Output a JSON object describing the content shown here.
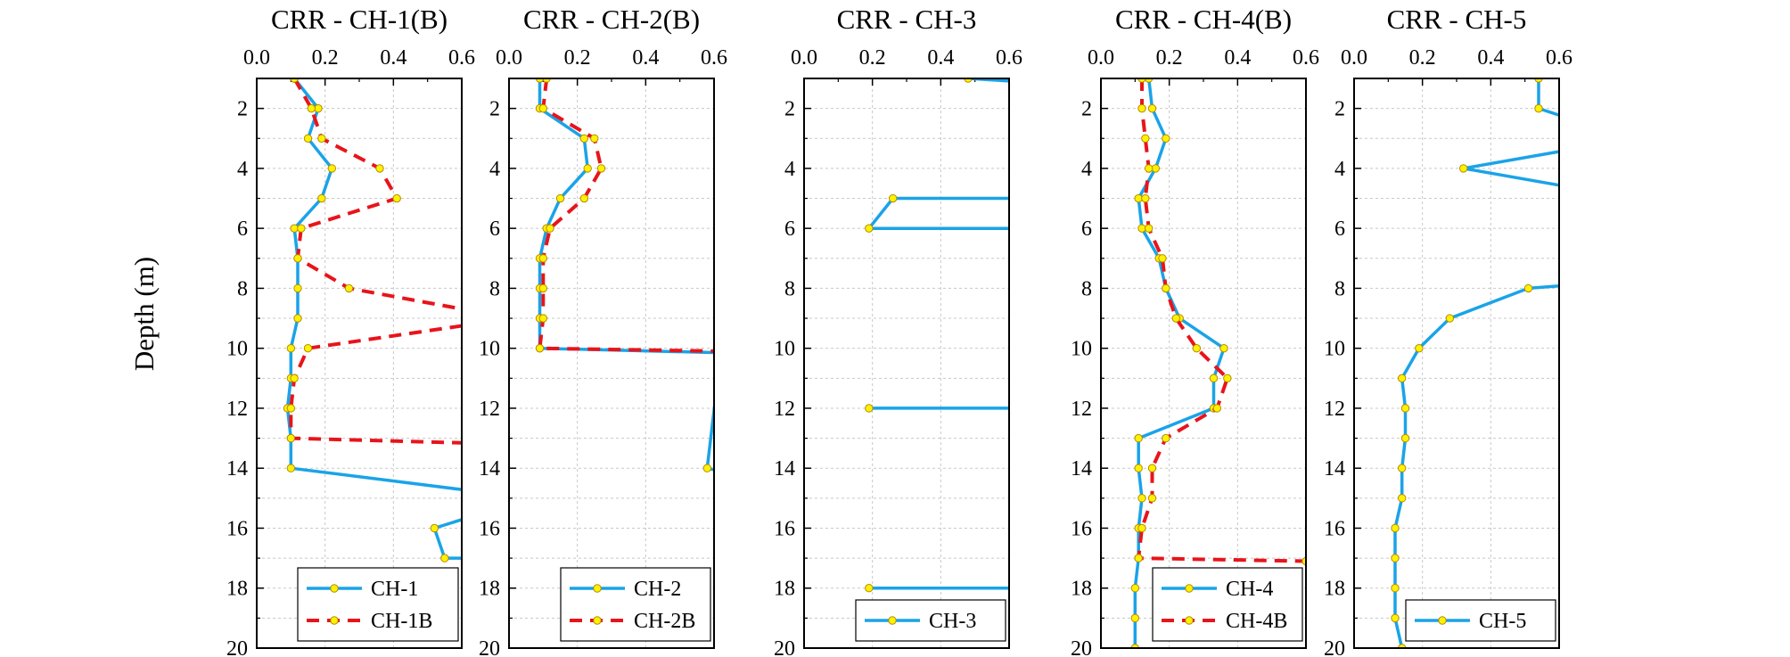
{
  "figure": {
    "ylabel": "Depth (m)",
    "colors": {
      "solid": "#1AA3E8",
      "dashed": "#E8141B",
      "marker_fill": "#FFF200",
      "marker_edge": "#B58A00"
    }
  },
  "chart_data": [
    {
      "type": "line",
      "title": "CRR - CH-1(B)",
      "xlim": [
        0,
        0.6
      ],
      "ylim": [
        1,
        20
      ],
      "y_inverted": true,
      "x_axis_position": "top",
      "xticks": [
        "0.0",
        "0.2",
        "0.4",
        "0.6"
      ],
      "yticks": [
        "2",
        "4",
        "6",
        "8",
        "10",
        "12",
        "14",
        "16",
        "18",
        "20"
      ],
      "grid": true,
      "legend_position": "bottom-right",
      "series": [
        {
          "name": "CH-1",
          "style": "solid",
          "x": [
            0.11,
            0.18,
            0.15,
            0.22,
            0.19,
            0.11,
            0.12,
            0.12,
            0.12,
            0.1,
            0.1,
            0.09,
            0.1,
            0.1,
            0.8,
            0.52,
            0.55,
            0.8
          ],
          "y": [
            1,
            2,
            3,
            4,
            5,
            6,
            7,
            8,
            9,
            10,
            11,
            12,
            13,
            14,
            15,
            16,
            17,
            17
          ]
        },
        {
          "name": "CH-1B",
          "style": "dashed",
          "x": [
            0.11,
            0.16,
            0.19,
            0.36,
            0.41,
            0.13,
            0.12,
            0.27,
            0.75,
            0.15,
            0.11,
            0.1,
            0.1,
            0.75
          ],
          "y": [
            1,
            2,
            3,
            4,
            5,
            6,
            7,
            8,
            9,
            10,
            11,
            12,
            13,
            13.2
          ]
        }
      ]
    },
    {
      "type": "line",
      "title": "CRR - CH-2(B)",
      "xlim": [
        0,
        0.6
      ],
      "ylim": [
        1,
        20
      ],
      "y_inverted": true,
      "x_axis_position": "top",
      "xticks": [
        "0.0",
        "0.2",
        "0.4",
        "0.6"
      ],
      "yticks": [
        "2",
        "4",
        "6",
        "8",
        "10",
        "12",
        "14",
        "16",
        "18",
        "20"
      ],
      "grid": true,
      "legend_position": "bottom-right",
      "series": [
        {
          "name": "CH-2",
          "style": "solid",
          "x": [
            0.09,
            0.09,
            0.22,
            0.23,
            0.15,
            0.11,
            0.09,
            0.09,
            0.09,
            0.09,
            0.62,
            0.58,
            0.62,
            0.62
          ],
          "y": [
            1,
            2,
            3,
            4,
            5,
            6,
            7,
            8,
            9,
            10,
            10.15,
            14,
            14.1,
            20
          ]
        },
        {
          "name": "CH-2B",
          "style": "dashed",
          "x": [
            0.11,
            0.1,
            0.25,
            0.27,
            0.22,
            0.12,
            0.1,
            0.1,
            0.1,
            0.09,
            0.62
          ],
          "y": [
            1,
            2,
            3,
            4,
            5,
            6,
            7,
            8,
            9,
            10,
            10.1
          ]
        }
      ]
    },
    {
      "type": "line",
      "title": "CRR - CH-3",
      "xlim": [
        0,
        0.6
      ],
      "ylim": [
        1,
        20
      ],
      "y_inverted": true,
      "x_axis_position": "top",
      "xticks": [
        "0.0",
        "0.2",
        "0.4",
        "0.6"
      ],
      "yticks": [
        "2",
        "4",
        "6",
        "8",
        "10",
        "12",
        "14",
        "16",
        "18",
        "20"
      ],
      "grid": true,
      "legend_position": "bottom-right",
      "series": [
        {
          "name": "CH-3",
          "style": "solid",
          "x": [
            0.48,
            0.62
          ],
          "y": [
            1,
            1.1
          ]
        },
        {
          "name": "CH-3",
          "style": "solid",
          "x": [
            0.62,
            0.26,
            0.19,
            0.62
          ],
          "y": [
            5,
            5,
            6,
            6
          ]
        },
        {
          "name": "CH-3",
          "style": "solid",
          "x": [
            0.19,
            0.62
          ],
          "y": [
            12,
            12
          ]
        },
        {
          "name": "CH-3",
          "style": "solid",
          "x": [
            0.19,
            0.62
          ],
          "y": [
            18,
            18
          ]
        }
      ]
    },
    {
      "type": "line",
      "title": "CRR - CH-4(B)",
      "xlim": [
        0,
        0.6
      ],
      "ylim": [
        1,
        20
      ],
      "y_inverted": true,
      "x_axis_position": "top",
      "xticks": [
        "0.0",
        "0.2",
        "0.4",
        "0.6"
      ],
      "yticks": [
        "2",
        "4",
        "6",
        "8",
        "10",
        "12",
        "14",
        "16",
        "18",
        "20"
      ],
      "grid": true,
      "legend_position": "bottom-right",
      "series": [
        {
          "name": "CH-4",
          "style": "solid",
          "x": [
            0.14,
            0.15,
            0.19,
            0.16,
            0.11,
            0.12,
            0.17,
            0.19,
            0.23,
            0.36,
            0.33,
            0.33,
            0.11,
            0.11,
            0.12,
            0.11,
            0.11,
            0.1,
            0.1,
            0.1
          ],
          "y": [
            1,
            2,
            3,
            4,
            5,
            6,
            7,
            8,
            9,
            10,
            11,
            12,
            13,
            14,
            15,
            16,
            17,
            18,
            19,
            20
          ]
        },
        {
          "name": "CH-4B",
          "style": "dashed",
          "x": [
            0.12,
            0.12,
            0.13,
            0.14,
            0.13,
            0.14,
            0.18,
            0.19,
            0.22,
            0.28,
            0.37,
            0.34,
            0.19,
            0.15,
            0.15,
            0.12,
            0.11,
            0.6
          ],
          "y": [
            1,
            2,
            3,
            4,
            5,
            6,
            7,
            8,
            9,
            10,
            11,
            12,
            13,
            14,
            15,
            16,
            17,
            17.1
          ]
        }
      ]
    },
    {
      "type": "line",
      "title": "CRR - CH-5",
      "xlim": [
        0,
        0.6
      ],
      "ylim": [
        1,
        20
      ],
      "y_inverted": true,
      "x_axis_position": "top",
      "xticks": [
        "0.0",
        "0.2",
        "0.4",
        "0.6"
      ],
      "yticks": [
        "2",
        "4",
        "6",
        "8",
        "10",
        "12",
        "14",
        "16",
        "18",
        "20"
      ],
      "grid": true,
      "legend_position": "bottom-right",
      "series": [
        {
          "name": "CH-5",
          "style": "solid",
          "x": [
            0.54,
            0.54,
            0.62
          ],
          "y": [
            1,
            2,
            2.3
          ]
        },
        {
          "name": "CH-5",
          "style": "solid",
          "x": [
            0.62,
            0.32,
            0.62
          ],
          "y": [
            3.4,
            4,
            4.6
          ]
        },
        {
          "name": "CH-5",
          "style": "solid",
          "x": [
            0.62,
            0.51,
            0.28,
            0.19,
            0.14,
            0.15,
            0.15,
            0.14,
            0.14,
            0.12,
            0.12,
            0.12,
            0.12,
            0.14
          ],
          "y": [
            7.9,
            8,
            9,
            10,
            11,
            12,
            13,
            14,
            15,
            16,
            17,
            18,
            19,
            20
          ]
        }
      ]
    }
  ]
}
